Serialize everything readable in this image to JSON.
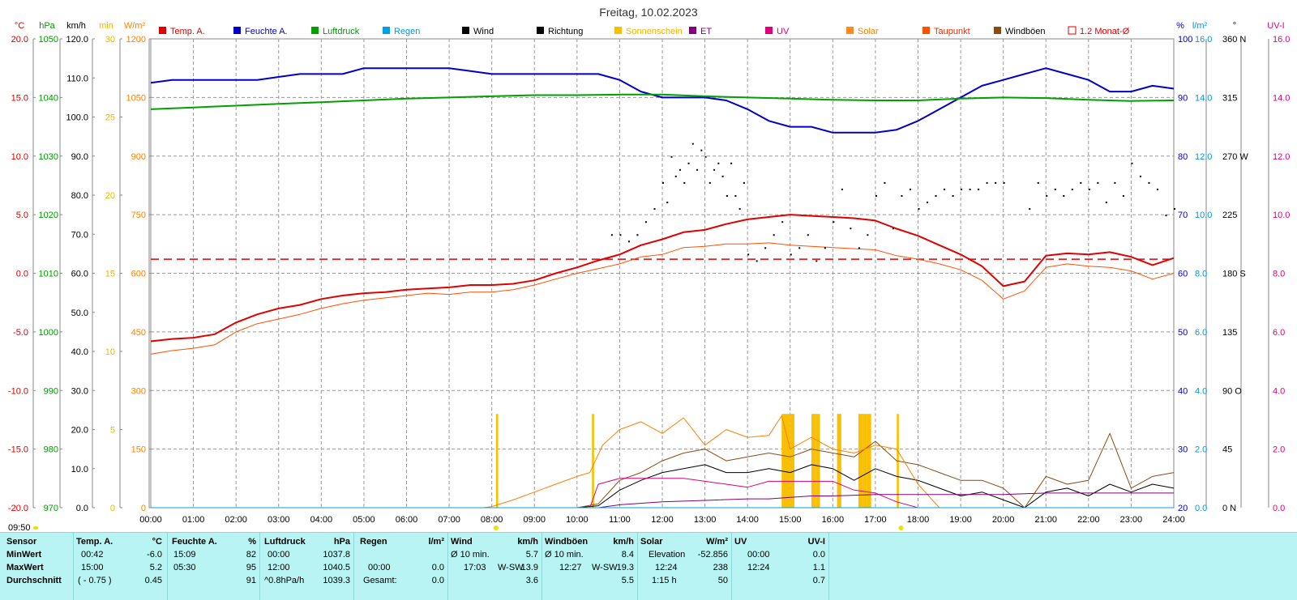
{
  "title": "Freitag, 10.02.2023",
  "timestamp": "09:50",
  "legend": [
    {
      "label": "Temp. A.",
      "color": "#e00000",
      "swatch": "#e00000"
    },
    {
      "label": "Feuchte A.",
      "color": "#0000cc",
      "swatch": "#0000cc"
    },
    {
      "label": "Luftdruck",
      "color": "#009900",
      "swatch": "#00a000"
    },
    {
      "label": "Regen",
      "color": "#0099dd",
      "swatch": "#00a0e8"
    },
    {
      "label": "Wind",
      "color": "#000000",
      "swatch": "#000000"
    },
    {
      "label": "Richtung",
      "color": "#000000",
      "swatch": "#000000"
    },
    {
      "label": "Sonnenschein",
      "color": "#f0b400",
      "swatch": "#f8c000"
    },
    {
      "label": "ET",
      "color": "#800080",
      "swatch": "#800080"
    },
    {
      "label": "UV",
      "color": "#e0007a",
      "swatch": "#e0007a"
    },
    {
      "label": "Solar",
      "color": "#ff8000",
      "swatch": "#ff8a20"
    },
    {
      "label": "Taupunkt",
      "color": "#e03000",
      "swatch": "#ff5000"
    },
    {
      "label": "Windböen",
      "color": "#000000",
      "swatch": "#8b4a14"
    },
    {
      "label": "1.2 Monat-Ø",
      "color": "#e00000",
      "swatch": "none"
    }
  ],
  "axes_left": [
    {
      "unit": "°C",
      "color": "#e00000",
      "ticks": [
        "20.0",
        "15.0",
        "10.0",
        "5.0",
        "0.0",
        "-5.0",
        "-10.0",
        "-15.0",
        "-20.0"
      ]
    },
    {
      "unit": "hPa",
      "color": "#009900",
      "ticks": [
        "1050",
        "1040",
        "1030",
        "1020",
        "1010",
        "1000",
        "990",
        "980",
        "970"
      ]
    },
    {
      "unit": "km/h",
      "color": "#000000",
      "ticks": [
        "120.0",
        "110.0",
        "100.0",
        "90.0",
        "80.0",
        "70.0",
        "60.0",
        "50.0",
        "40.0",
        "30.0",
        "20.0",
        "10.0",
        "0.0"
      ]
    },
    {
      "unit": "min",
      "color": "#f0b400",
      "ticks": [
        "30",
        "25",
        "20",
        "15",
        "10",
        "5",
        "0"
      ]
    },
    {
      "unit": "W/m²",
      "color": "#ff8000",
      "ticks": [
        "1200",
        "1050",
        "900",
        "750",
        "600",
        "450",
        "300",
        "150",
        "0"
      ]
    }
  ],
  "axes_right": [
    {
      "unit": "%",
      "color": "#0000cc",
      "ticks": [
        "100",
        "90",
        "80",
        "70",
        "60",
        "50",
        "40",
        "30",
        "20"
      ]
    },
    {
      "unit": "l/m²",
      "color": "#0099dd",
      "ticks": [
        "16.0",
        "14.0",
        "12.0",
        "10.0",
        "8.0",
        "6.0",
        "4.0",
        "2.0",
        "0.0"
      ]
    },
    {
      "unit": "°",
      "color": "#000000",
      "ticks": [
        "360 N",
        "315",
        "270 W",
        "225",
        "180 S",
        "135",
        "90 O",
        "45",
        "0 N"
      ]
    },
    {
      "unit": "UV-I",
      "color": "#e0007a",
      "ticks": [
        "16.0",
        "14.0",
        "12.0",
        "10.0",
        "8.0",
        "6.0",
        "4.0",
        "2.0",
        "0.0"
      ]
    }
  ],
  "x_ticks": [
    "00:00",
    "01:00",
    "02:00",
    "03:00",
    "04:00",
    "05:00",
    "06:00",
    "07:00",
    "08:00",
    "09:00",
    "10:00",
    "11:00",
    "12:00",
    "13:00",
    "14:00",
    "15:00",
    "16:00",
    "17:00",
    "18:00",
    "19:00",
    "20:00",
    "21:00",
    "22:00",
    "23:00",
    "24:00"
  ],
  "chart_data": {
    "type": "line",
    "title": "Freitag, 10.02.2023",
    "x_unit": "hour",
    "xlim": [
      0,
      24
    ],
    "grid": true,
    "legend_position": "top",
    "series": [
      {
        "name": "Temp. A.",
        "unit": "°C",
        "color": "#e00000",
        "x": [
          0,
          0.5,
          1,
          1.5,
          2,
          2.5,
          3,
          3.5,
          4,
          4.5,
          5,
          5.5,
          6,
          6.5,
          7,
          7.5,
          8,
          8.5,
          9,
          9.5,
          10,
          10.5,
          11,
          11.5,
          12,
          12.5,
          13,
          13.5,
          14,
          14.5,
          15,
          15.5,
          16,
          16.5,
          17,
          17.5,
          18,
          18.5,
          19,
          19.5,
          20,
          20.5,
          21,
          21.5,
          22,
          22.5,
          23,
          23.5,
          24
        ],
        "y": [
          -5.8,
          -5.6,
          -5.5,
          -5.2,
          -4.2,
          -3.5,
          -3.0,
          -2.7,
          -2.2,
          -1.9,
          -1.7,
          -1.6,
          -1.4,
          -1.3,
          -1.2,
          -1.0,
          -1.0,
          -0.9,
          -0.6,
          0.0,
          0.5,
          1.1,
          1.6,
          2.4,
          2.9,
          3.5,
          3.7,
          4.2,
          4.6,
          4.8,
          5.0,
          4.9,
          4.8,
          4.7,
          4.5,
          3.8,
          3.2,
          2.4,
          1.6,
          0.6,
          -1.1,
          -0.7,
          1.5,
          1.7,
          1.6,
          1.8,
          1.4,
          0.7,
          1.3
        ]
      },
      {
        "name": "Taupunkt",
        "unit": "°C",
        "color": "#ff5000",
        "x": [
          0,
          0.5,
          1,
          1.5,
          2,
          2.5,
          3,
          3.5,
          4,
          4.5,
          5,
          5.5,
          6,
          6.5,
          7,
          7.5,
          8,
          8.5,
          9,
          9.5,
          10,
          10.5,
          11,
          11.5,
          12,
          12.5,
          13,
          13.5,
          14,
          14.5,
          15,
          15.5,
          16,
          16.5,
          17,
          17.5,
          18,
          18.5,
          19,
          19.5,
          20,
          20.5,
          21,
          21.5,
          22,
          22.5,
          23,
          23.5,
          24
        ],
        "y": [
          -6.9,
          -6.6,
          -6.4,
          -6.1,
          -5.0,
          -4.3,
          -3.9,
          -3.5,
          -3.0,
          -2.6,
          -2.3,
          -2.1,
          -1.9,
          -1.7,
          -1.8,
          -1.6,
          -1.6,
          -1.4,
          -1.0,
          -0.5,
          0.0,
          0.4,
          0.8,
          1.4,
          1.6,
          2.2,
          2.3,
          2.5,
          2.5,
          2.6,
          2.4,
          2.3,
          2.2,
          2.1,
          2.0,
          1.5,
          1.2,
          0.8,
          0.3,
          -0.6,
          -2.2,
          -1.5,
          0.5,
          0.8,
          0.6,
          0.5,
          0.2,
          -0.5,
          0.0
        ]
      },
      {
        "name": "Feuchte A.",
        "unit": "%",
        "color": "#0000cc",
        "x": [
          0,
          0.5,
          1,
          1.5,
          2,
          2.5,
          3,
          3.5,
          4,
          4.5,
          5,
          5.5,
          6,
          6.5,
          7,
          7.5,
          8,
          8.5,
          9,
          9.5,
          10,
          10.5,
          11,
          11.5,
          12,
          12.5,
          13,
          13.5,
          14,
          14.5,
          15,
          15.5,
          16,
          16.5,
          17,
          17.5,
          18,
          18.5,
          19,
          19.5,
          20,
          20.5,
          21,
          21.5,
          22,
          22.5,
          23,
          23.5,
          24
        ],
        "y": [
          92.5,
          93,
          93,
          93,
          93,
          93,
          93.5,
          94,
          94,
          94,
          95,
          95,
          95,
          95,
          95,
          94.5,
          94,
          94,
          94,
          94,
          94,
          94,
          93,
          91,
          90,
          90,
          90,
          89.5,
          88,
          86,
          85,
          85,
          84,
          84,
          84,
          84.5,
          86,
          88,
          90,
          92,
          93,
          94,
          95,
          94,
          93,
          91,
          91,
          92,
          91.5
        ]
      },
      {
        "name": "Luftdruck",
        "unit": "hPa",
        "color": "#00a000",
        "x": [
          0,
          1,
          2,
          3,
          4,
          5,
          6,
          7,
          8,
          9,
          10,
          11,
          12,
          13,
          14,
          15,
          16,
          17,
          18,
          19,
          20,
          21,
          22,
          23,
          24
        ],
        "y": [
          1038.0,
          1038.3,
          1038.6,
          1038.9,
          1039.2,
          1039.5,
          1039.8,
          1040.0,
          1040.2,
          1040.4,
          1040.4,
          1040.5,
          1040.5,
          1040.2,
          1040.0,
          1039.8,
          1039.6,
          1039.5,
          1039.5,
          1039.8,
          1040.0,
          1039.9,
          1039.6,
          1039.4,
          1039.5
        ]
      },
      {
        "name": "Wind",
        "unit": "km/h",
        "color": "#000000",
        "x": [
          0,
          10,
          10.5,
          11,
          11.5,
          12,
          12.5,
          13,
          13.5,
          14,
          14.5,
          15,
          15.5,
          16,
          16.5,
          17,
          17.5,
          18,
          18.5,
          19,
          19.5,
          20,
          20.5,
          21,
          21.5,
          22,
          22.5,
          23,
          23.5,
          24
        ],
        "y": [
          0,
          0,
          0.5,
          4.5,
          7,
          9,
          10,
          11,
          9,
          9,
          10,
          9,
          11,
          10,
          7,
          10,
          8,
          7,
          5,
          3,
          4,
          2,
          0,
          4,
          5,
          3,
          6,
          4,
          6,
          5
        ]
      },
      {
        "name": "Windböen",
        "unit": "km/h",
        "color": "#8b4a14",
        "x": [
          0,
          10,
          10.5,
          11,
          11.5,
          12,
          12.5,
          13,
          13.5,
          14,
          14.5,
          15,
          15.5,
          16,
          16.5,
          17,
          17.5,
          18,
          18.5,
          19,
          19.5,
          20,
          20.5,
          21,
          21.5,
          22,
          22.5,
          23,
          23.5,
          24
        ],
        "y": [
          0,
          0,
          1,
          7,
          9,
          12,
          14,
          15,
          12,
          13,
          14,
          13,
          15,
          14,
          13,
          17,
          12,
          11,
          9,
          7,
          7,
          5,
          0,
          8,
          6,
          7,
          19,
          5,
          8,
          9
        ]
      },
      {
        "name": "Solar",
        "unit": "W/m²",
        "color": "#ff8000",
        "x": [
          0,
          7.8,
          8,
          8.5,
          9,
          9.5,
          10,
          10.3,
          10.6,
          11,
          11.5,
          12,
          12.5,
          13,
          13.5,
          14,
          14.5,
          14.8,
          15,
          15.5,
          16,
          16.5,
          17,
          17.5,
          18,
          18.5
        ],
        "y": [
          0,
          0,
          3,
          20,
          40,
          60,
          80,
          90,
          160,
          200,
          220,
          190,
          230,
          160,
          200,
          180,
          185,
          235,
          150,
          180,
          150,
          140,
          160,
          150,
          60,
          0
        ]
      },
      {
        "name": "UV",
        "unit": "UV-I",
        "color": "#e0007a",
        "x": [
          0,
          10.3,
          10.5,
          11,
          11.5,
          12,
          12.5,
          13,
          13.5,
          14,
          14.5,
          15,
          15.5,
          16,
          16.5,
          17,
          17.5,
          18
        ],
        "y": [
          0,
          0,
          0.8,
          1.0,
          1.0,
          1.0,
          1.0,
          0.9,
          0.8,
          0.7,
          0.9,
          0.9,
          0.9,
          0.9,
          0.6,
          0.5,
          0.2,
          0
        ]
      },
      {
        "name": "ET",
        "unit": "l/m²",
        "color": "#800080",
        "x": [
          0,
          10.5,
          11,
          12,
          13,
          14,
          14.5,
          15,
          15.5,
          16,
          17,
          18,
          19,
          20,
          21,
          22,
          23,
          24
        ],
        "y": [
          0,
          0,
          0.1,
          0.2,
          0.25,
          0.3,
          0.3,
          0.35,
          0.4,
          0.4,
          0.45,
          0.45,
          0.45,
          0.45,
          0.5,
          0.5,
          0.5,
          0.5
        ]
      },
      {
        "name": "Regen",
        "unit": "l/m²",
        "color": "#00a0e8",
        "x": [
          0,
          24
        ],
        "y": [
          0,
          0
        ]
      }
    ],
    "sunshine": {
      "name": "Sonnenschein",
      "unit": "min",
      "color": "#f8c000",
      "x": [
        8.1,
        10.35,
        14.8,
        14.9,
        15.0,
        15.5,
        15.6,
        16.1,
        16.6,
        16.7,
        16.8,
        17.5
      ],
      "y": [
        6,
        6,
        6,
        6,
        6,
        6,
        6,
        6,
        6,
        6,
        6,
        6
      ],
      "widths": [
        0.05,
        0.05,
        0.1,
        0.1,
        0.1,
        0.1,
        0.1,
        0.1,
        0.1,
        0.1,
        0.1,
        0.05
      ]
    },
    "direction": {
      "name": "Richtung",
      "unit": "°",
      "x": [
        10.8,
        11,
        11.2,
        11.4,
        11.6,
        11.8,
        12.0,
        12.1,
        12.2,
        12.3,
        12.4,
        12.5,
        12.6,
        12.7,
        12.8,
        12.9,
        13.0,
        13.1,
        13.2,
        13.3,
        13.4,
        13.5,
        13.6,
        13.7,
        13.8,
        13.9,
        14.0,
        14.2,
        14.4,
        14.6,
        14.8,
        15.0,
        15.2,
        15.4,
        15.6,
        15.8,
        16.0,
        16.2,
        16.4,
        16.6,
        16.8,
        17.0,
        17.2,
        17.4,
        17.6,
        17.8,
        18.0,
        18.2,
        18.4,
        18.6,
        18.8,
        19.0,
        19.2,
        19.4,
        19.6,
        19.8,
        20.0,
        20.6,
        20.8,
        21.0,
        21.2,
        21.4,
        21.6,
        21.8,
        22.0,
        22.2,
        22.4,
        22.6,
        22.8,
        23.0,
        23.2,
        23.4,
        23.6,
        23.8,
        24.0
      ],
      "y": [
        210,
        210,
        205,
        210,
        220,
        230,
        250,
        235,
        270,
        255,
        260,
        250,
        265,
        280,
        260,
        275,
        270,
        250,
        260,
        265,
        255,
        240,
        265,
        240,
        230,
        250,
        195,
        190,
        200,
        210,
        220,
        195,
        200,
        210,
        190,
        200,
        220,
        245,
        215,
        200,
        210,
        240,
        250,
        215,
        240,
        245,
        230,
        235,
        240,
        245,
        240,
        245,
        245,
        245,
        250,
        250,
        250,
        230,
        250,
        240,
        245,
        240,
        245,
        250,
        245,
        250,
        235,
        250,
        240,
        265,
        255,
        250,
        245,
        225,
        230
      ]
    },
    "monthly_avg": {
      "name": "1.2 Monat-Ø",
      "unit": "°C",
      "value": 1.2
    },
    "axes": {
      "temp_C": [
        -20,
        20
      ],
      "pressure_hPa": [
        970,
        1050
      ],
      "wind_kmh": [
        0,
        120
      ],
      "sunshine_min": [
        0,
        30
      ],
      "solar_Wm2": [
        0,
        1200
      ],
      "humidity_pct": [
        20,
        100
      ],
      "rain_lm2": [
        0,
        16
      ],
      "direction_deg": [
        0,
        360
      ],
      "uv_index": [
        0,
        16
      ]
    }
  },
  "stats": {
    "cols": [
      "Sensor",
      "Temp. A.",
      "°C",
      "Feuchte A.",
      "%",
      "Luftdruck",
      "hPa",
      "Regen",
      "l/m²",
      "Wind",
      "km/h",
      "Windböen",
      "km/h",
      "Solar",
      "W/m²",
      "UV",
      "UV-I"
    ],
    "row_min": {
      "label": "MinWert",
      "temp_time": "00:42",
      "temp_val": "-6.0",
      "hum_time": "15:09",
      "hum_val": "82",
      "press_time": "00:00",
      "press_val": "1037.8",
      "wind_label": "Ø 10 min.",
      "wind_val": "5.7",
      "gust_label": "Ø 10 min.",
      "gust_val": "8.4",
      "solar_label": "Elevation",
      "solar_val": "-52.856",
      "uv_time": "00:00",
      "uv_val": "0.0"
    },
    "row_max": {
      "label": "MaxWert",
      "temp_time": "15:00",
      "temp_val": "5.2",
      "hum_time": "05:30",
      "hum_val": "95",
      "press_time": "12:00",
      "press_val": "1040.5",
      "rain_time": "00:00",
      "rain_val": "0.0",
      "wind_time": "17:03",
      "wind_dir": "W-SW",
      "wind_val": "13.9",
      "gust_time": "12:27",
      "gust_dir": "W-SW",
      "gust_val": "19.3",
      "solar_time": "12:24",
      "solar_val": "238",
      "uv_time": "12:24",
      "uv_val": "1.1"
    },
    "row_avg": {
      "label": "Durchschnitt",
      "temp_time": "( - 0.75 )",
      "temp_val": "0.45",
      "hum_val": "91",
      "press_time": "^0.8hPa/h",
      "press_val": "1039.3",
      "rain_label": "Gesamt:",
      "rain_val": "0.0",
      "wind_val": "3.6",
      "gust_val": "5.5",
      "solar_label": "1:15 h",
      "solar_val": "50",
      "uv_val": "0.7"
    }
  }
}
